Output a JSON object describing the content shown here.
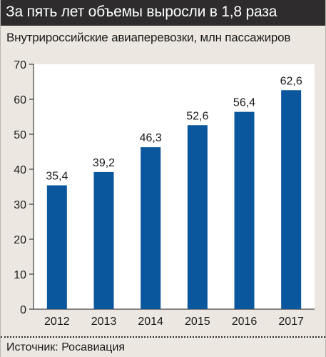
{
  "header": {
    "title": "За пять лет объемы выросли в 1,8 раза"
  },
  "subtitle": "Внутрироссийские авиаперевозки, млн пассажиров",
  "source": "Источник: Росавиация",
  "colors": {
    "bar": "#0a579d",
    "header_bg": "#2e2c2c",
    "plot_bg": "#ffffff",
    "panel_bg": "#ece7e1"
  },
  "chart_data": {
    "type": "bar",
    "categories": [
      "2012",
      "2013",
      "2014",
      "2015",
      "2016",
      "2017"
    ],
    "values": [
      35.4,
      39.2,
      46.3,
      52.6,
      56.4,
      62.6
    ],
    "data_labels": [
      "35,4",
      "39,2",
      "46,3",
      "52,6",
      "56,4",
      "62,6"
    ],
    "y_ticks": [
      0,
      10,
      20,
      30,
      40,
      50,
      60,
      70
    ],
    "ylim": [
      0,
      70
    ],
    "title": "За пять лет объемы выросли в 1,8 раза",
    "subtitle": "Внутрироссийские авиаперевозки, млн пассажиров",
    "xlabel": "",
    "ylabel": "",
    "grid": false,
    "legend": "none"
  }
}
